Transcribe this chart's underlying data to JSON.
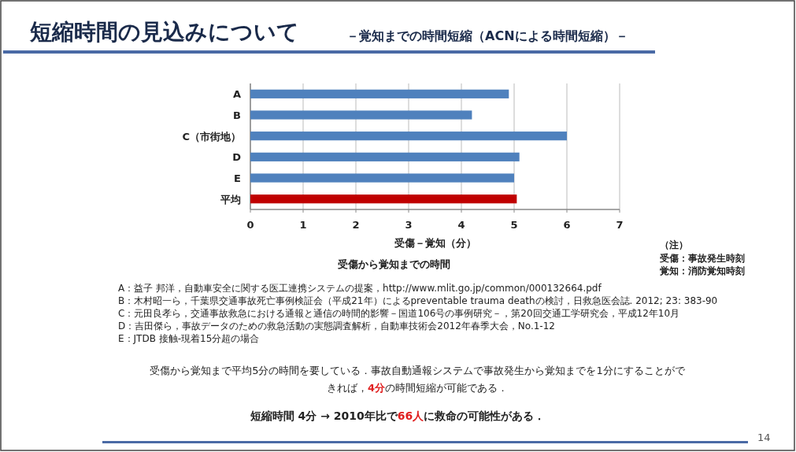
{
  "chart_data": {
    "type": "bar",
    "orientation": "horizontal",
    "title": "短縮時間の見込みについて",
    "subtitle": "－覚知までの時間短縮（ACNによる時間短縮）－",
    "categories": [
      "A",
      "B",
      "C（市街地）",
      "D",
      "E",
      "平均"
    ],
    "values": [
      4.9,
      4.2,
      6.0,
      5.1,
      5.0,
      5.05
    ],
    "colors": [
      "#4f81bd",
      "#4f81bd",
      "#4f81bd",
      "#4f81bd",
      "#4f81bd",
      "#c00000"
    ],
    "xlim": [
      0,
      7
    ],
    "xticks": [
      0,
      1,
      2,
      3,
      4,
      5,
      6,
      7
    ],
    "grid": "x",
    "xlabel": "受傷－覚知（分）",
    "annotations": [
      "受傷から覚知までの時間",
      "（注）",
      "受傷：事故発生時刻",
      "覚知：消防覚知時刻",
      "A：益子 邦洋，自動車安全に関する医工連携システムの提案，http://www.mlit.go.jp/common/000132664.pdf",
      "B：木村昭一ら，千葉県交通事故死亡事例検証会（平成21年）によるpreventable trauma deathの検討，日救急医会誌. 2012; 23: 383-90",
      "C：元田良孝ら，交通事故救急における通報と通信の時間的影響－国道106号の事例研究－，第20回交通工学研究会，平成12年10月",
      "D：吉田傑ら，事故データのための救急活動の実態調査解析，自動車技術会2012年春季大会，No.1-12",
      "E：JTDB 接触-現着15分超の場合",
      "受傷から覚知まで平均5分の時間を要している．事故自動通報システムで事故発生から覚知までを1分にすることができれば，**4分**の時間短縮が可能である．",
      "短縮時間 4分 → 2010年比で**66人**に救命の可能性がある．",
      "14"
    ]
  }
}
